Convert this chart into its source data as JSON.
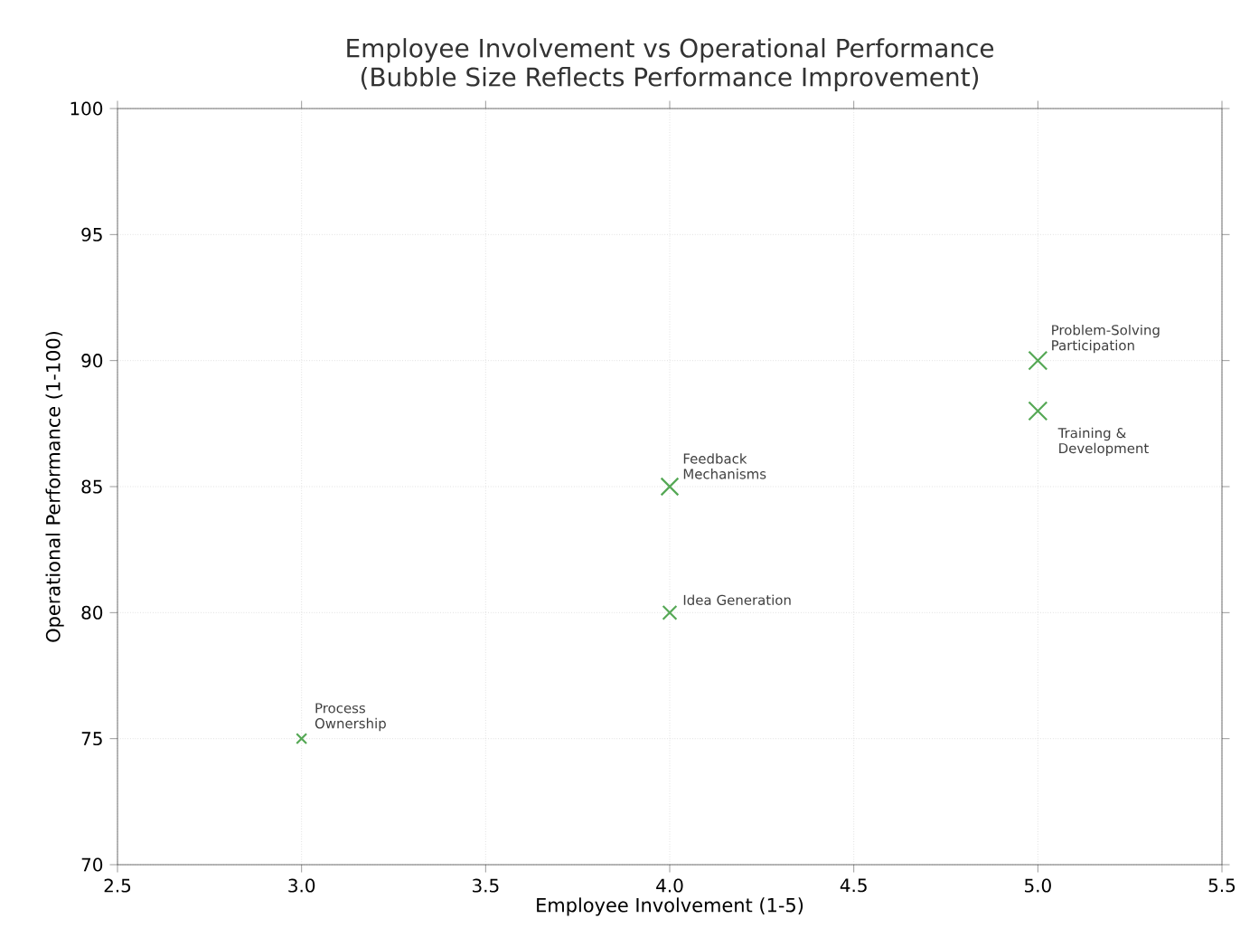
{
  "chart_data": {
    "type": "bubble",
    "title": "Employee Involvement vs Operational Performance",
    "subtitle": "(Bubble Size Reflects Performance Improvement)",
    "xlabel": "Employee Involvement (1-5)",
    "ylabel": "Operational Performance (1-100)",
    "x": [
      3,
      4,
      4,
      5,
      5
    ],
    "values": [
      75,
      80,
      85,
      88,
      90
    ],
    "sizes": [
      0.3,
      0.56,
      0.9,
      1,
      1
    ],
    "color": "#55a855",
    "marker": "cross",
    "grid": true,
    "xlim": [
      2.5,
      5.5
    ],
    "xticks": [
      {
        "value": 2.5,
        "label": "2.5"
      },
      {
        "value": 3,
        "label": "3.0"
      },
      {
        "value": 3.5,
        "label": "3.5"
      },
      {
        "value": 4,
        "label": "4.0"
      },
      {
        "value": 4.5,
        "label": "4.5"
      },
      {
        "value": 5,
        "label": "5.0"
      },
      {
        "value": 5.5,
        "label": "5.5"
      }
    ],
    "ylim": [
      70,
      100
    ],
    "yticks": [
      70,
      75,
      80,
      85,
      90,
      95,
      100
    ],
    "annotations": [
      {
        "text": "Process Ownership",
        "x": 3,
        "y": 75
      },
      {
        "text": "Idea Generation",
        "x": 4,
        "y": 80
      },
      {
        "text": "Feedback Mechanisms",
        "x": 4,
        "y": 85
      },
      {
        "text": "Training & Development",
        "x": 5,
        "y": 88
      },
      {
        "text": "Problem-Solving Participation",
        "x": 5,
        "y": 90
      }
    ]
  }
}
